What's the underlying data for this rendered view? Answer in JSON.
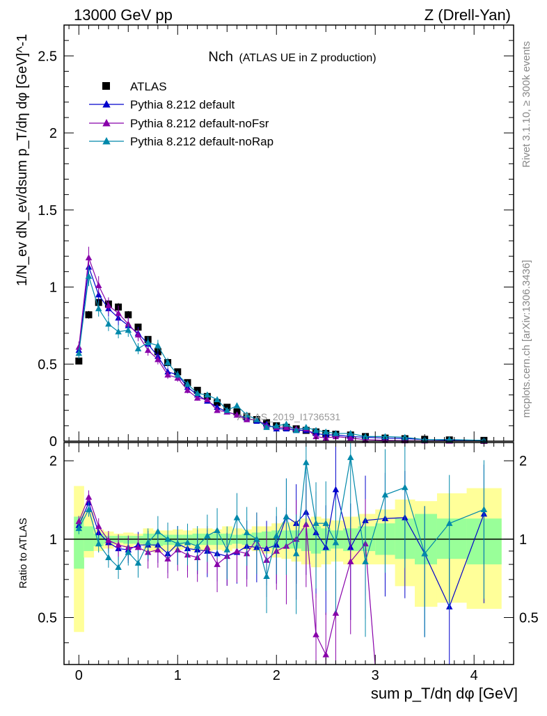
{
  "header": {
    "left": "13000 GeV pp",
    "right": "Z (Drell-Yan)"
  },
  "plot_title": {
    "main": "Nch",
    "sub": "(ATLAS UE in Z production)"
  },
  "side_labels": {
    "rivet": "Rivet 3.1.10, ≥ 300k events",
    "mcplots": "mcplots.cern.ch [arXiv:1306.3436]"
  },
  "watermark": "ATLAS_2019_I1736531",
  "axes": {
    "main_ylabel": "1/N_ev dN_ev/dsum p_T/dη dφ [GeV]^-1",
    "ratio_ylabel": "Ratio to ATLAS",
    "xlabel": "sum p_T/dη dφ [GeV]",
    "x_ticks": [
      "0",
      "1",
      "2",
      "3",
      "4"
    ],
    "main_y_ticks": [
      "0",
      "0.5",
      "1",
      "1.5",
      "2",
      "2.5"
    ],
    "ratio_y_ticks": [
      "0.5",
      "1",
      "2"
    ]
  },
  "colors": {
    "data": "#000000",
    "default": "#0000cc",
    "noFsr": "#8800aa",
    "noRap": "#0088aa",
    "band_yellow": "#ffff99",
    "band_green": "#99ff99"
  },
  "chart_data": {
    "type": "scatter",
    "title": "Nch (ATLAS UE in Z production)",
    "xlabel": "sum pT/dη dφ [GeV]",
    "ylabel": "1/Nev dNev/dsum pT/dη dφ [GeV]^-1",
    "xlim": [
      -0.15,
      4.4
    ],
    "ylim": [
      0,
      2.7
    ],
    "ratio_ylim": [
      0.33,
      2.35
    ],
    "x": [
      0.0,
      0.1,
      0.2,
      0.3,
      0.4,
      0.5,
      0.6,
      0.7,
      0.8,
      0.9,
      1.0,
      1.1,
      1.2,
      1.3,
      1.4,
      1.5,
      1.6,
      1.7,
      1.8,
      1.9,
      2.0,
      2.1,
      2.2,
      2.3,
      2.4,
      2.5,
      2.6,
      2.75,
      2.9,
      3.1,
      3.3,
      3.5,
      3.75,
      4.1
    ],
    "series": [
      {
        "name": "ATLAS",
        "marker": "square",
        "values": [
          0.52,
          0.82,
          0.9,
          0.89,
          0.87,
          0.82,
          0.74,
          0.66,
          0.58,
          0.51,
          0.45,
          0.38,
          0.33,
          0.29,
          0.25,
          0.22,
          0.19,
          0.16,
          0.14,
          0.12,
          0.1,
          0.09,
          0.08,
          0.07,
          0.06,
          0.05,
          0.045,
          0.04,
          0.03,
          0.02,
          0.016,
          0.012,
          0.008,
          0.005
        ]
      },
      {
        "name": "Pythia 8.212 default",
        "marker": "triangle",
        "values": [
          0.59,
          1.13,
          0.95,
          0.86,
          0.8,
          0.75,
          0.7,
          0.63,
          0.55,
          0.45,
          0.43,
          0.35,
          0.3,
          0.26,
          0.22,
          0.19,
          0.17,
          0.15,
          0.13,
          0.11,
          0.08,
          0.08,
          0.07,
          0.07,
          0.05,
          0.04,
          0.04,
          0.03,
          0.025,
          0.02,
          0.017,
          0.01,
          0.006,
          0.005
        ],
        "ratio": [
          1.13,
          1.38,
          1.06,
          0.97,
          0.92,
          0.91,
          0.95,
          0.95,
          0.95,
          0.88,
          0.96,
          0.92,
          0.91,
          0.9,
          0.88,
          0.86,
          0.89,
          0.94,
          0.93,
          0.92,
          0.95,
          1.22,
          1.15,
          1.27,
          1.06,
          0.93,
          1.55,
          0.93,
          1.18,
          1.2,
          1.21,
          0.88,
          0.55,
          1.25
        ]
      },
      {
        "name": "Pythia 8.212 default-noFsr",
        "marker": "triangle",
        "values": [
          0.61,
          1.19,
          1.01,
          0.88,
          0.83,
          0.76,
          0.69,
          0.59,
          0.53,
          0.43,
          0.41,
          0.33,
          0.28,
          0.27,
          0.2,
          0.19,
          0.17,
          0.14,
          0.14,
          0.1,
          0.09,
          0.09,
          0.08,
          0.08,
          0.03,
          0.02,
          0.03,
          0.02,
          0.01,
          0.005,
          0.003,
          0.002,
          0.001,
          0.001
        ],
        "ratio": [
          1.17,
          1.45,
          1.12,
          0.99,
          0.95,
          0.93,
          0.93,
          0.89,
          0.91,
          0.84,
          0.91,
          0.87,
          0.85,
          0.93,
          0.8,
          0.86,
          0.9,
          0.88,
          1.0,
          0.83,
          0.9,
          0.94,
          1.0,
          1.14,
          0.43,
          0.36,
          0.52,
          0.82,
          0.96,
          null,
          null,
          null,
          null,
          null
        ]
      },
      {
        "name": "Pythia 8.212 default-noRap",
        "marker": "triangle",
        "values": [
          0.57,
          1.07,
          0.86,
          0.76,
          0.71,
          0.72,
          0.6,
          0.64,
          0.62,
          0.51,
          0.43,
          0.37,
          0.31,
          0.3,
          0.27,
          0.2,
          0.23,
          0.17,
          0.14,
          0.09,
          0.1,
          0.11,
          0.07,
          0.09,
          0.07,
          0.06,
          0.05,
          0.05,
          0.03,
          0.03,
          0.025,
          0.01,
          0.01,
          0.005
        ],
        "ratio": [
          1.1,
          1.3,
          0.96,
          0.85,
          0.78,
          0.89,
          0.81,
          0.97,
          1.07,
          1.0,
          0.96,
          0.97,
          0.94,
          1.03,
          1.08,
          0.91,
          1.21,
          1.06,
          1.0,
          0.72,
          1.03,
          1.22,
          0.88,
          1.97,
          1.15,
          1.15,
          0.97,
          2.06,
          0.82,
          1.48,
          1.58,
          0.88,
          1.15,
          1.3
        ]
      }
    ],
    "ratio_uncertainty": {
      "yellow_lo": [
        0.44,
        0.85,
        0.9,
        0.92,
        0.95,
        0.93,
        0.95,
        0.9,
        0.89,
        0.9,
        0.91,
        0.92,
        0.9,
        0.9,
        0.91,
        0.9,
        0.92,
        0.91,
        0.9,
        0.88,
        0.85,
        0.84,
        0.82,
        0.8,
        0.78,
        0.8,
        0.82,
        0.8,
        0.8,
        0.8,
        0.66,
        0.55,
        0.57,
        0.54
      ],
      "yellow_hi": [
        1.6,
        1.28,
        1.09,
        1.07,
        1.05,
        1.06,
        1.05,
        1.1,
        1.08,
        1.08,
        1.09,
        1.08,
        1.1,
        1.1,
        1.09,
        1.12,
        1.1,
        1.09,
        1.12,
        1.12,
        1.15,
        1.16,
        1.18,
        1.2,
        1.22,
        1.2,
        1.18,
        1.22,
        1.25,
        1.3,
        1.42,
        1.4,
        1.5,
        1.57
      ],
      "green_lo": [
        0.77,
        0.9,
        0.94,
        0.96,
        0.97,
        0.96,
        0.96,
        0.95,
        0.94,
        0.95,
        0.95,
        0.96,
        0.95,
        0.95,
        0.95,
        0.95,
        0.96,
        0.95,
        0.94,
        0.93,
        0.92,
        0.92,
        0.92,
        0.9,
        0.88,
        0.9,
        0.92,
        0.9,
        0.9,
        0.87,
        0.84,
        0.8,
        0.84,
        0.8
      ],
      "green_hi": [
        1.22,
        1.12,
        1.05,
        1.03,
        1.03,
        1.03,
        1.03,
        1.05,
        1.05,
        1.04,
        1.04,
        1.04,
        1.05,
        1.05,
        1.05,
        1.05,
        1.04,
        1.05,
        1.06,
        1.07,
        1.08,
        1.08,
        1.08,
        1.1,
        1.12,
        1.1,
        1.08,
        1.1,
        1.12,
        1.15,
        1.2,
        1.25,
        1.2,
        1.2
      ]
    }
  }
}
